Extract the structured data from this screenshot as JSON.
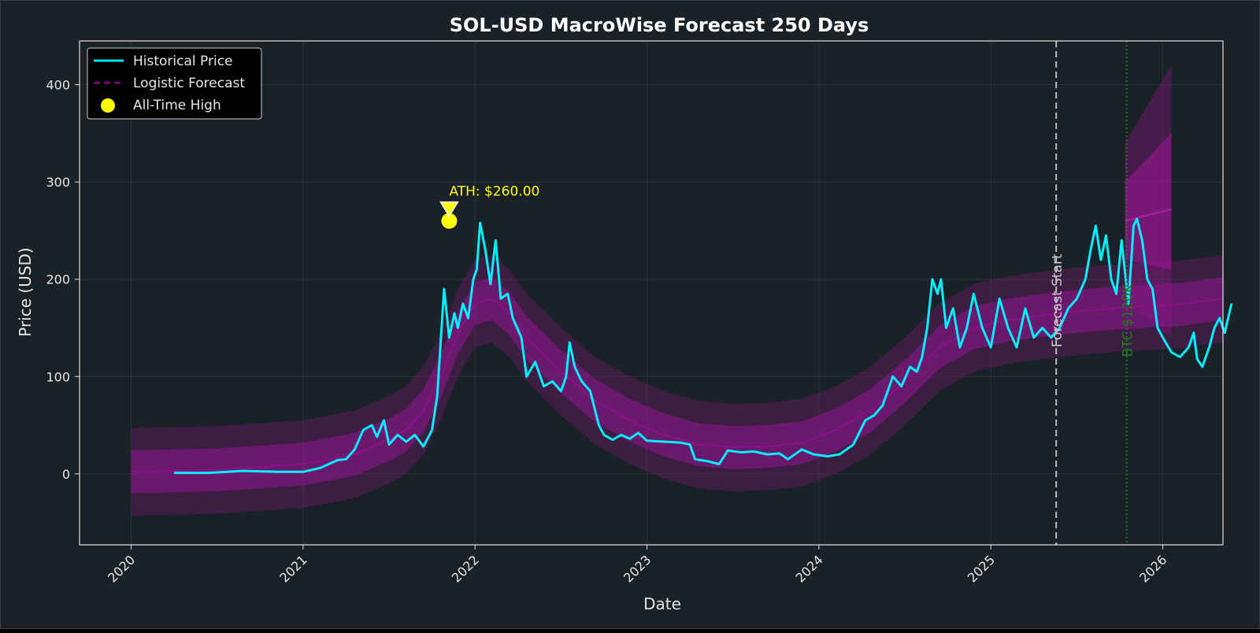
{
  "chart_data": {
    "type": "line",
    "title": "SOL-USD MacroWise Forecast 250 Days",
    "xlabel": "Date",
    "ylabel": "Price (USD)",
    "xlim": [
      2019.7,
      2026.35
    ],
    "ylim": [
      -73,
      445
    ],
    "x_ticks": [
      {
        "value": 2020,
        "label": "2020"
      },
      {
        "value": 2021,
        "label": "2021"
      },
      {
        "value": 2022,
        "label": "2022"
      },
      {
        "value": 2023,
        "label": "2023"
      },
      {
        "value": 2024,
        "label": "2024"
      },
      {
        "value": 2025,
        "label": "2025"
      },
      {
        "value": 2026,
        "label": "2026"
      }
    ],
    "y_ticks": [
      0,
      100,
      200,
      300,
      400
    ],
    "grid": true,
    "legend_position": "top-left",
    "legend": [
      {
        "label": "Historical Price",
        "style": "solid",
        "color": "#00e5f0"
      },
      {
        "label": "Logistic Forecast",
        "style": "dashed",
        "color": "#7a0a7a"
      },
      {
        "label": "All-Time High",
        "style": "marker",
        "color": "#ffff00"
      }
    ],
    "series": [
      {
        "name": "Historical Price",
        "color": "#00f0ff",
        "points": [
          [
            2020.25,
            1
          ],
          [
            2020.45,
            1
          ],
          [
            2020.65,
            3
          ],
          [
            2020.85,
            2
          ],
          [
            2021.0,
            2
          ],
          [
            2021.1,
            6
          ],
          [
            2021.2,
            14
          ],
          [
            2021.25,
            15
          ],
          [
            2021.3,
            25
          ],
          [
            2021.35,
            45
          ],
          [
            2021.4,
            50
          ],
          [
            2021.43,
            38
          ],
          [
            2021.47,
            55
          ],
          [
            2021.5,
            30
          ],
          [
            2021.55,
            40
          ],
          [
            2021.6,
            33
          ],
          [
            2021.65,
            40
          ],
          [
            2021.7,
            28
          ],
          [
            2021.75,
            45
          ],
          [
            2021.78,
            80
          ],
          [
            2021.82,
            190
          ],
          [
            2021.85,
            140
          ],
          [
            2021.88,
            165
          ],
          [
            2021.9,
            150
          ],
          [
            2021.93,
            175
          ],
          [
            2021.96,
            160
          ],
          [
            2021.99,
            200
          ],
          [
            2022.01,
            210
          ],
          [
            2022.03,
            258
          ],
          [
            2022.06,
            230
          ],
          [
            2022.09,
            195
          ],
          [
            2022.12,
            240
          ],
          [
            2022.15,
            180
          ],
          [
            2022.19,
            185
          ],
          [
            2022.22,
            160
          ],
          [
            2022.27,
            140
          ],
          [
            2022.3,
            100
          ],
          [
            2022.35,
            115
          ],
          [
            2022.4,
            90
          ],
          [
            2022.45,
            95
          ],
          [
            2022.5,
            85
          ],
          [
            2022.53,
            100
          ],
          [
            2022.55,
            135
          ],
          [
            2022.58,
            110
          ],
          [
            2022.62,
            95
          ],
          [
            2022.67,
            85
          ],
          [
            2022.72,
            50
          ],
          [
            2022.75,
            40
          ],
          [
            2022.8,
            35
          ],
          [
            2022.85,
            40
          ],
          [
            2022.9,
            36
          ],
          [
            2022.95,
            42
          ],
          [
            2023.0,
            34
          ],
          [
            2023.1,
            33
          ],
          [
            2023.2,
            32
          ],
          [
            2023.25,
            30
          ],
          [
            2023.28,
            15
          ],
          [
            2023.35,
            13
          ],
          [
            2023.42,
            10
          ],
          [
            2023.47,
            24
          ],
          [
            2023.55,
            22
          ],
          [
            2023.62,
            23
          ],
          [
            2023.7,
            20
          ],
          [
            2023.77,
            21
          ],
          [
            2023.82,
            15
          ],
          [
            2023.9,
            25
          ],
          [
            2023.97,
            20
          ],
          [
            2024.05,
            18
          ],
          [
            2024.12,
            20
          ],
          [
            2024.2,
            30
          ],
          [
            2024.27,
            55
          ],
          [
            2024.32,
            60
          ],
          [
            2024.37,
            70
          ],
          [
            2024.43,
            100
          ],
          [
            2024.48,
            90
          ],
          [
            2024.53,
            110
          ],
          [
            2024.57,
            105
          ],
          [
            2024.6,
            120
          ],
          [
            2024.63,
            150
          ],
          [
            2024.66,
            200
          ],
          [
            2024.69,
            185
          ],
          [
            2024.71,
            200
          ],
          [
            2024.74,
            150
          ],
          [
            2024.78,
            170
          ],
          [
            2024.82,
            130
          ],
          [
            2024.86,
            150
          ],
          [
            2024.9,
            185
          ],
          [
            2024.95,
            150
          ],
          [
            2025.0,
            130
          ],
          [
            2025.05,
            180
          ],
          [
            2025.1,
            150
          ],
          [
            2025.15,
            130
          ],
          [
            2025.2,
            170
          ],
          [
            2025.25,
            140
          ],
          [
            2025.3,
            150
          ],
          [
            2025.35,
            140
          ],
          [
            2025.4,
            150
          ],
          [
            2025.45,
            170
          ],
          [
            2025.5,
            180
          ],
          [
            2025.55,
            200
          ],
          [
            2025.58,
            230
          ],
          [
            2025.61,
            255
          ],
          [
            2025.64,
            220
          ],
          [
            2025.67,
            245
          ],
          [
            2025.7,
            200
          ],
          [
            2025.73,
            185
          ],
          [
            2025.76,
            240
          ],
          [
            2025.8,
            175
          ],
          [
            2025.83,
            255
          ],
          [
            2025.85,
            262
          ],
          [
            2025.88,
            240
          ],
          [
            2025.91,
            200
          ],
          [
            2025.94,
            190
          ],
          [
            2025.97,
            150
          ],
          [
            2026.0,
            140
          ],
          [
            2026.05,
            125
          ],
          [
            2026.1,
            120
          ],
          [
            2026.15,
            130
          ],
          [
            2026.18,
            145
          ],
          [
            2026.2,
            118
          ],
          [
            2026.23,
            110
          ],
          [
            2026.27,
            130
          ],
          [
            2026.3,
            150
          ],
          [
            2026.33,
            160
          ],
          [
            2026.36,
            145
          ],
          [
            2026.4,
            175
          ]
        ]
      },
      {
        "name": "Logistic Forecast",
        "color": "#8c0f8c",
        "points": [
          [
            2020.0,
            2
          ],
          [
            2020.5,
            4
          ],
          [
            2021.0,
            10
          ],
          [
            2021.3,
            20
          ],
          [
            2021.5,
            35
          ],
          [
            2021.6,
            45
          ],
          [
            2021.7,
            65
          ],
          [
            2021.8,
            100
          ],
          [
            2021.9,
            145
          ],
          [
            2022.0,
            175
          ],
          [
            2022.1,
            180
          ],
          [
            2022.2,
            165
          ],
          [
            2022.3,
            140
          ],
          [
            2022.5,
            105
          ],
          [
            2022.7,
            75
          ],
          [
            2022.9,
            55
          ],
          [
            2023.1,
            40
          ],
          [
            2023.3,
            30
          ],
          [
            2023.5,
            27
          ],
          [
            2023.7,
            28
          ],
          [
            2023.9,
            32
          ],
          [
            2024.1,
            45
          ],
          [
            2024.3,
            65
          ],
          [
            2024.5,
            95
          ],
          [
            2024.7,
            130
          ],
          [
            2024.9,
            150
          ],
          [
            2025.1,
            158
          ],
          [
            2025.3,
            163
          ],
          [
            2025.5,
            167
          ],
          [
            2025.7,
            170
          ],
          [
            2025.9,
            172
          ],
          [
            2026.1,
            174
          ],
          [
            2026.35,
            180
          ]
        ]
      }
    ],
    "band_offsets": {
      "inner": 22,
      "outer": 45
    },
    "extended_forecast": {
      "start": 2025.78,
      "end": 2026.05,
      "start_value": 260,
      "end_value": 272,
      "inner_low": [
        220,
        210
      ],
      "inner_high": [
        300,
        350
      ],
      "outer_low": [
        180,
        140
      ],
      "outer_high": [
        340,
        420
      ]
    },
    "annotations": {
      "ath": {
        "x": 2021.85,
        "y": 260,
        "label": "ATH: $260.00",
        "color": "#ffff00"
      },
      "forecast_start": {
        "x": 2025.38,
        "label": "Forecast Start",
        "color": "#c8c8c8"
      },
      "btc_line": {
        "x": 2025.79,
        "label": "BTC $120K",
        "color": "#1e7a1e"
      }
    }
  }
}
